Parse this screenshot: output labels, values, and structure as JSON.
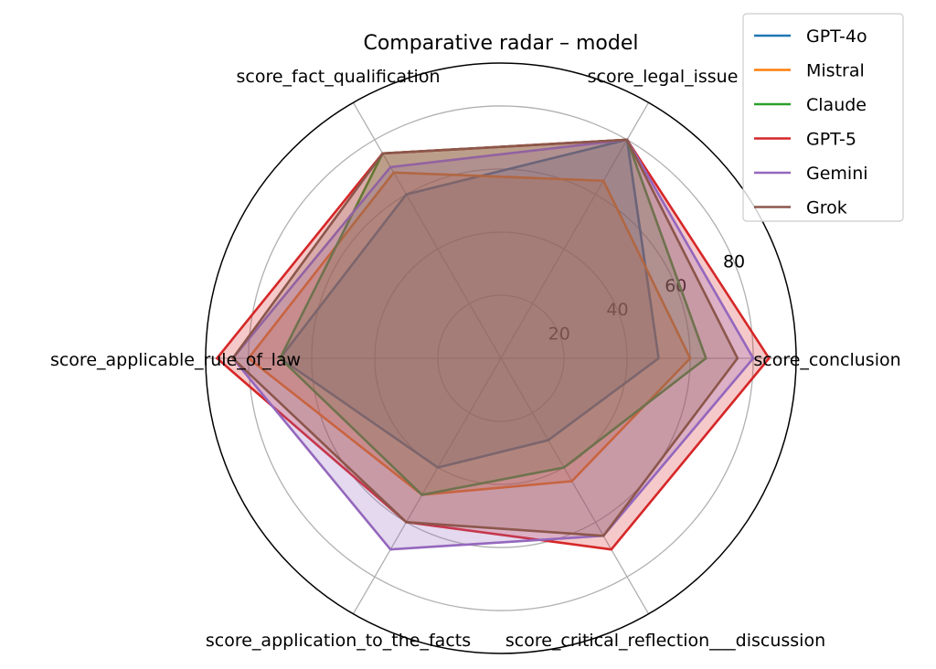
{
  "chart_data": {
    "type": "radar",
    "title": "Comparative radar – model",
    "categories": [
      "score_legal_issue",
      "score_fact_qualification",
      "score_applicable_rule_of_law",
      "score_application_to_the_facts",
      "score_critical_reflection___discussion",
      "score_conclusion"
    ],
    "rlim": [
      0,
      93.6
    ],
    "rticks": [
      20,
      40,
      60,
      80
    ],
    "grid": true,
    "legend_position": "top-right",
    "series": [
      {
        "name": "GPT-4o",
        "color": "#1f77b4",
        "values": [
          80,
          60,
          70,
          40,
          30,
          50
        ]
      },
      {
        "name": "Mistral",
        "color": "#ff7f0e",
        "values": [
          65,
          68,
          80,
          50,
          45,
          60
        ]
      },
      {
        "name": "Claude",
        "color": "#2ca02c",
        "values": [
          80,
          75,
          70,
          50,
          40,
          65
        ]
      },
      {
        "name": "GPT-5",
        "color": "#d62728",
        "values": [
          80,
          75,
          90,
          60,
          70,
          85
        ]
      },
      {
        "name": "Gemini",
        "color": "#9467bd",
        "values": [
          80,
          70,
          85,
          70,
          65,
          80
        ]
      },
      {
        "name": "Grok",
        "color": "#8c564b",
        "values": [
          80,
          75,
          85,
          60,
          65,
          75
        ]
      }
    ]
  }
}
